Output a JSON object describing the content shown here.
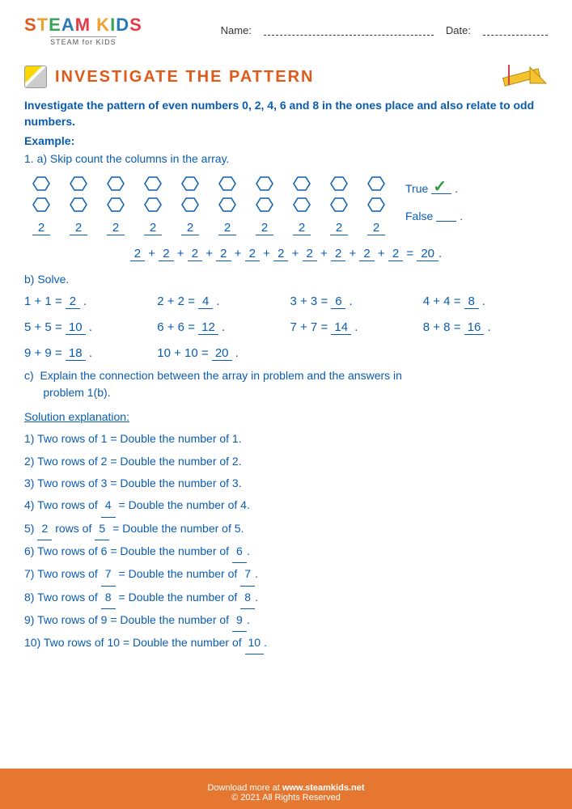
{
  "header": {
    "logo_main": "STEAM KIDS",
    "logo_sub": "STEAM for KIDS",
    "name_label": "Name:",
    "date_label": "Date:"
  },
  "title": "INVESTIGATE THE PATTERN",
  "instructions": "Investigate the pattern of even numbers 0, 2, 4, 6 and 8 in the ones place and also relate to odd numbers.",
  "example_label": "Example:",
  "q1a": "1.  a)  Skip count the columns in the array.",
  "array": {
    "columns": 10,
    "rows": 2,
    "column_value": "2",
    "hexagon_stroke": "#0a5cb0",
    "true_label": "True",
    "false_label": "False",
    "true_checked": true
  },
  "equation_line": {
    "terms": [
      "2",
      "2",
      "2",
      "2",
      "2",
      "2",
      "2",
      "2",
      "2",
      "2"
    ],
    "result": "20"
  },
  "q1b": "b)  Solve.",
  "solve": [
    {
      "lhs": "1 + 1 =",
      "ans": "2"
    },
    {
      "lhs": "2 + 2 =",
      "ans": "4"
    },
    {
      "lhs": "3 + 3 =",
      "ans": "6"
    },
    {
      "lhs": "4 + 4 =",
      "ans": "8"
    },
    {
      "lhs": "5 + 5 =",
      "ans": "10"
    },
    {
      "lhs": "6 + 6 =",
      "ans": "12"
    },
    {
      "lhs": "7 + 7 =",
      "ans": "14"
    },
    {
      "lhs": "8 + 8 =",
      "ans": "16"
    },
    {
      "lhs": "9 + 9 =",
      "ans": "18"
    },
    {
      "lhs": "10 + 10 =",
      "ans": "20"
    }
  ],
  "q1c": "c)  Explain the connection between the array in problem and the answers in\n      problem 1(b).",
  "solution_label": "Solution explanation:",
  "explanations": [
    "1)  Two rows of 1 = Double the number of 1.",
    "2)  Two rows of 2 = Double the number of 2.",
    "3)  Two rows of 3 = Double the number of 3.",
    "4)  Two rows of _4_ = Double the number of 4.",
    "5)  _2_ rows of _5_ = Double the number of 5.",
    "6)  Two rows of 6 = Double the number of _6_.",
    "7)  Two rows of _7_ = Double the number of _7_.",
    "8)  Two rows of _8_ = Double the number of _8_.",
    "9)  Two rows of 9 = Double the number of _9_.",
    "10)  Two rows of 10 = Double the number of _10_."
  ],
  "footer": {
    "line1": "Download more at www.steamkids.net",
    "line2": "© 2021 All Rights Reserved"
  },
  "colors": {
    "primary_blue": "#0a5cb0",
    "title_orange": "#e05a1a",
    "footer_orange": "#e67730",
    "check_green": "#2a9d3f"
  }
}
